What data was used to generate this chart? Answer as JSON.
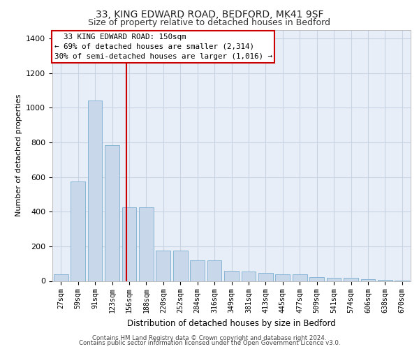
{
  "title1": "33, KING EDWARD ROAD, BEDFORD, MK41 9SF",
  "title2": "Size of property relative to detached houses in Bedford",
  "xlabel": "Distribution of detached houses by size in Bedford",
  "ylabel": "Number of detached properties",
  "footer1": "Contains HM Land Registry data © Crown copyright and database right 2024.",
  "footer2": "Contains public sector information licensed under the Open Government Licence v3.0.",
  "annotation_line1": "  33 KING EDWARD ROAD: 150sqm  ",
  "annotation_line2": "← 69% of detached houses are smaller (2,314)",
  "annotation_line3": "30% of semi-detached houses are larger (1,016) →",
  "bar_color": "#c8d8ea",
  "bar_edge_color": "#7aaecf",
  "marker_color": "#cc0000",
  "categories": [
    "27sqm",
    "59sqm",
    "91sqm",
    "123sqm",
    "156sqm",
    "188sqm",
    "220sqm",
    "252sqm",
    "284sqm",
    "316sqm",
    "349sqm",
    "381sqm",
    "413sqm",
    "445sqm",
    "477sqm",
    "509sqm",
    "541sqm",
    "574sqm",
    "606sqm",
    "638sqm",
    "670sqm"
  ],
  "values": [
    40,
    575,
    1040,
    785,
    425,
    425,
    175,
    175,
    120,
    120,
    60,
    55,
    45,
    40,
    40,
    22,
    18,
    18,
    10,
    5,
    2
  ],
  "ylim": [
    0,
    1450
  ],
  "yticks": [
    0,
    200,
    400,
    600,
    800,
    1000,
    1200,
    1400
  ],
  "grid_color": "#c8d4e4",
  "plot_bg_color": "#e8eef8"
}
